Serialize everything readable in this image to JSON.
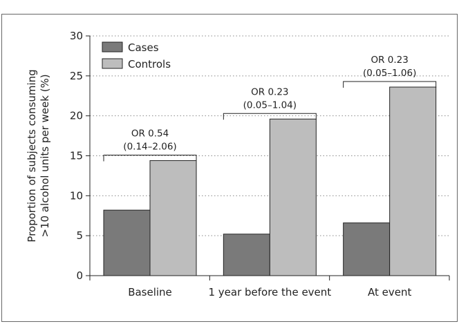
{
  "chart_data": {
    "type": "bar",
    "title": "",
    "xlabel": "",
    "ylabel_lines": [
      "Proportion of subjects consuming",
      ">10 alcohol units per week (%)"
    ],
    "categories": [
      "Baseline",
      "1 year before the event",
      "At event"
    ],
    "series": [
      {
        "name": "Cases",
        "values": [
          8.2,
          5.2,
          6.6
        ],
        "color": "#7a7a7a"
      },
      {
        "name": "Controls",
        "values": [
          14.4,
          19.6,
          23.6
        ],
        "color": "#bdbdbd"
      }
    ],
    "ylim": [
      0,
      30
    ],
    "yticks": [
      0,
      5,
      10,
      15,
      20,
      25,
      30
    ],
    "grid": "horizontal dotted",
    "legend_position": "top-left",
    "annotations": [
      {
        "category": "Baseline",
        "line1": "OR 0.54",
        "line2": "(0.14–2.06)"
      },
      {
        "category": "1 year before the event",
        "line1": "OR 0.23",
        "line2": "(0.05–1.04)"
      },
      {
        "category": "At event",
        "line1": "OR 0.23",
        "line2": "(0.05–1.06)"
      }
    ],
    "bar_outline_color": "#222222",
    "grid_color": "#888888"
  }
}
